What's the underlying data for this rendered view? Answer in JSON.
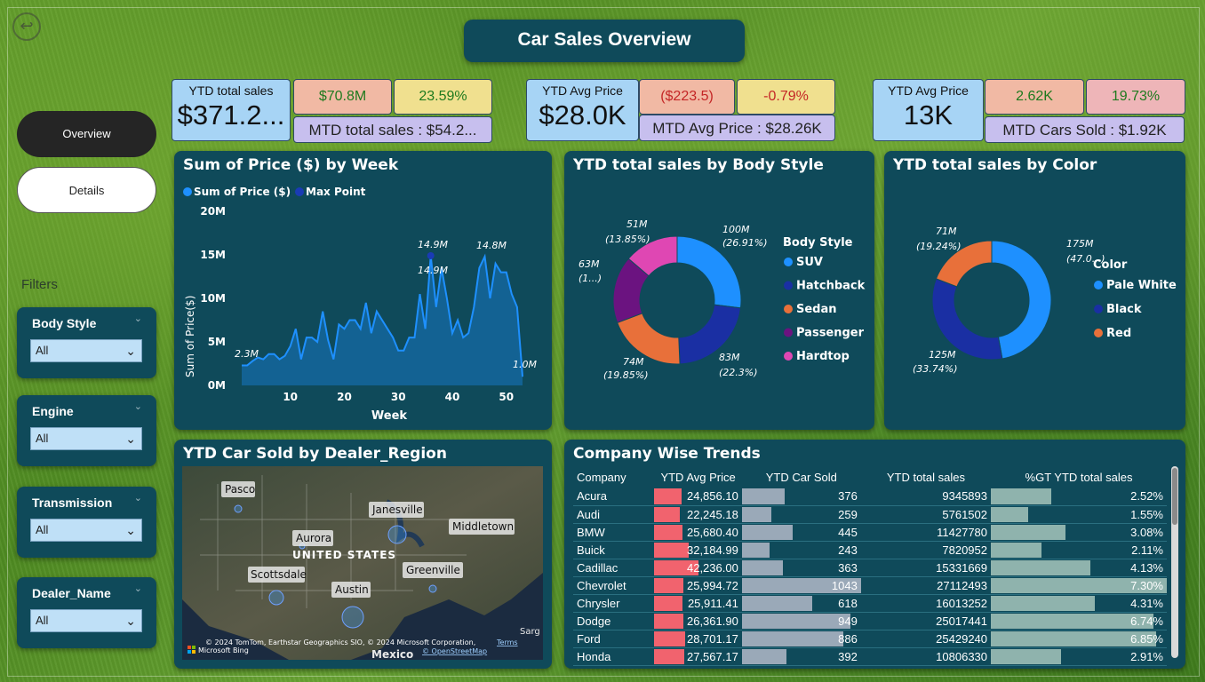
{
  "title": "Car Sales Overview",
  "nav": {
    "overview": "Overview",
    "details": "Details"
  },
  "filters": {
    "label": "Filters",
    "slicers": [
      {
        "label": "Body Style",
        "value": "All"
      },
      {
        "label": "Engine",
        "value": "All"
      },
      {
        "label": "Transmission",
        "value": "All"
      },
      {
        "label": "Dealer_Name",
        "value": "All"
      }
    ]
  },
  "kpis": {
    "sales": {
      "title": "YTD total sales",
      "value": "$371.2...",
      "delta_abs": "$70.8M",
      "delta_pct": "23.59%",
      "mtd": "MTD total sales : $54.2..."
    },
    "price": {
      "title": "YTD Avg Price",
      "value": "$28.0K",
      "delta_abs": "($223.5)",
      "delta_pct": "-0.79%",
      "mtd": "MTD Avg Price : $28.26K"
    },
    "sold": {
      "title": "YTD Avg Price",
      "value": "13K",
      "delta_abs": "2.62K",
      "delta_pct": "19.73%",
      "mtd": "MTD Cars Sold : $1.92K"
    }
  },
  "colors": {
    "green_kpi": "#f1b9a4",
    "yellow_kpi": "#f0e08f",
    "pink_kpi": "#eeb5b8",
    "blue_kpi": "#a7d4f5",
    "purple_kpi": "#c7bfee",
    "line": "#1e90ff",
    "max_point": "#1a3bb5",
    "suv": "#1e90ff",
    "hatchback": "#1a2fa3",
    "sedan": "#e8703a",
    "passenger": "#6b1380",
    "hardtop": "#df47b3",
    "pale_white": "#1e90ff",
    "black": "#1a2fa3",
    "red": "#e8703a"
  },
  "line_chart": {
    "title": "Sum of Price ($) by Week",
    "legend": [
      "Sum of Price ($)",
      "Max Point"
    ],
    "ylabel": "Sum of Price($)",
    "xlabel": "Week",
    "yticks": [
      "20M",
      "15M",
      "10M",
      "5M",
      "0M"
    ],
    "xticks": [
      "10",
      "20",
      "30",
      "40",
      "50"
    ],
    "labels": [
      "2.3M",
      "14.9M",
      "14.9M",
      "14.8M",
      "1.0M"
    ]
  },
  "body_chart": {
    "title": "YTD total sales by Body Style",
    "legend_title": "Body Style",
    "labels": [
      "100M",
      "(26.91%)",
      "83M",
      "(22.3%)",
      "74M",
      "(19.85%)",
      "63M",
      "(1...)",
      "51M",
      "(13.85%)"
    ]
  },
  "color_chart": {
    "title": "YTD total sales by Color",
    "legend_title": "Color",
    "labels": [
      "175M",
      "(47.0...)",
      "125M",
      "(33.74%)",
      "71M",
      "(19.24%)"
    ]
  },
  "map": {
    "title": "YTD Car Sold by Dealer_Region",
    "cities": [
      "Pasco",
      "Janesville",
      "Aurora",
      "Middletown",
      "Scottsdale",
      "Greenville",
      "Austin"
    ],
    "country": "UNITED STATES",
    "mexico": "Mexico",
    "sarg": "Sarg",
    "attribution": "© 2024 TomTom, Earthstar Geographics SIO, © 2024 Microsoft Corporation,",
    "terms": "Terms",
    "osm": "© OpenStreetMap",
    "bing": "Microsoft Bing"
  },
  "table": {
    "title": "Company Wise Trends",
    "headers": [
      "Company",
      "YTD Avg Price",
      "YTD Car Sold",
      "YTD total sales",
      "%GT YTD total sales"
    ],
    "rows": [
      [
        "Acura",
        "24,856.10",
        "376",
        "9345893",
        "2.52%"
      ],
      [
        "Audi",
        "22,245.18",
        "259",
        "5761502",
        "1.55%"
      ],
      [
        "BMW",
        "25,680.40",
        "445",
        "11427780",
        "3.08%"
      ],
      [
        "Buick",
        "32,184.99",
        "243",
        "7820952",
        "2.11%"
      ],
      [
        "Cadillac",
        "42,236.00",
        "363",
        "15331669",
        "4.13%"
      ],
      [
        "Chevrolet",
        "25,994.72",
        "1043",
        "27112493",
        "7.30%"
      ],
      [
        "Chrysler",
        "25,911.41",
        "618",
        "16013252",
        "4.31%"
      ],
      [
        "Dodge",
        "26,361.90",
        "949",
        "25017441",
        "6.74%"
      ],
      [
        "Ford",
        "28,701.17",
        "886",
        "25429240",
        "6.85%"
      ],
      [
        "Honda",
        "27,567.17",
        "392",
        "10806330",
        "2.91%"
      ]
    ]
  },
  "chart_data": [
    {
      "type": "area",
      "title": "Sum of Price ($) by Week",
      "xlabel": "Week",
      "ylabel": "Sum of Price($)",
      "xlim": [
        1,
        53
      ],
      "ylim": [
        0,
        20
      ],
      "y_unit": "M",
      "series": [
        {
          "name": "Sum of Price ($)",
          "x": [
            1,
            2,
            3,
            4,
            5,
            6,
            7,
            8,
            9,
            10,
            11,
            12,
            13,
            14,
            15,
            16,
            17,
            18,
            19,
            20,
            21,
            22,
            23,
            24,
            25,
            26,
            27,
            28,
            29,
            30,
            31,
            32,
            33,
            34,
            35,
            36,
            37,
            38,
            39,
            40,
            41,
            42,
            43,
            44,
            45,
            46,
            47,
            48,
            49,
            50,
            51,
            52,
            53
          ],
          "y": [
            2.3,
            2.3,
            2.8,
            3.2,
            3.0,
            3.6,
            3.6,
            3.0,
            3.4,
            4.5,
            6.5,
            3.0,
            5.5,
            5.5,
            5.0,
            8.5,
            5.2,
            3.0,
            7.0,
            6.5,
            7.5,
            7.5,
            6.5,
            9.5,
            6.0,
            8.5,
            7.5,
            6.5,
            5.5,
            4.0,
            4.0,
            5.5,
            5.5,
            10.5,
            6.5,
            14.9,
            9.0,
            13.5,
            10.0,
            6.0,
            7.5,
            5.5,
            6.0,
            9.0,
            13.5,
            14.8,
            10.0,
            14.0,
            13.0,
            13.0,
            10.5,
            9.0,
            1.0
          ]
        },
        {
          "name": "Max Point",
          "x": [
            36
          ],
          "y": [
            14.9
          ]
        }
      ]
    },
    {
      "type": "pie",
      "title": "YTD total sales by Body Style",
      "categories": [
        "SUV",
        "Hatchback",
        "Sedan",
        "Passenger",
        "Hardtop"
      ],
      "values": [
        100,
        83,
        74,
        63,
        51
      ],
      "percent": [
        26.91,
        22.3,
        19.85,
        17.09,
        13.85
      ]
    },
    {
      "type": "pie",
      "title": "YTD total sales by Color",
      "categories": [
        "Pale White",
        "Black",
        "Red"
      ],
      "values": [
        175,
        125,
        71
      ],
      "percent": [
        47.02,
        33.74,
        19.24
      ]
    },
    {
      "type": "table",
      "title": "Company Wise Trends",
      "columns": [
        "Company",
        "YTD Avg Price",
        "YTD Car Sold",
        "YTD total sales",
        "%GT YTD total sales"
      ],
      "avg_price": [
        24856.1,
        22245.18,
        25680.4,
        32184.99,
        42236.0,
        25994.72,
        25911.41,
        26361.9,
        28701.17,
        27567.17
      ],
      "car_sold": [
        376,
        259,
        445,
        243,
        363,
        1043,
        618,
        949,
        886,
        392
      ],
      "pct_total": [
        2.52,
        1.55,
        3.08,
        2.11,
        4.13,
        7.3,
        4.31,
        6.74,
        6.85,
        2.91
      ]
    }
  ]
}
